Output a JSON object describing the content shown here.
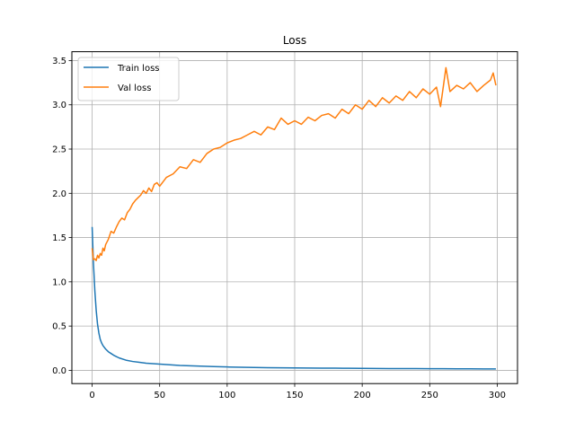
{
  "chart_data": {
    "type": "line",
    "title": "Loss",
    "xlabel": "",
    "ylabel": "",
    "xlim": [
      -15,
      315
    ],
    "ylim": [
      -0.15,
      3.6
    ],
    "xticks": [
      0,
      50,
      100,
      150,
      200,
      250,
      300
    ],
    "yticks": [
      0.0,
      0.5,
      1.0,
      1.5,
      2.0,
      2.5,
      3.0,
      3.5
    ],
    "xtick_labels": [
      "0",
      "50",
      "100",
      "150",
      "200",
      "250",
      "300"
    ],
    "ytick_labels": [
      "0.0",
      "0.5",
      "1.0",
      "1.5",
      "2.0",
      "2.5",
      "3.0",
      "3.5"
    ],
    "grid": true,
    "legend_position": "top-left",
    "series": [
      {
        "name": "Train loss",
        "color": "#1f77b4",
        "x": [
          0,
          1,
          2,
          3,
          4,
          5,
          6,
          7,
          8,
          9,
          10,
          12,
          14,
          16,
          18,
          20,
          25,
          30,
          35,
          40,
          45,
          50,
          55,
          60,
          65,
          70,
          75,
          80,
          90,
          100,
          110,
          120,
          130,
          140,
          150,
          160,
          170,
          180,
          190,
          200,
          210,
          220,
          230,
          240,
          250,
          260,
          270,
          280,
          290,
          299
        ],
        "values": [
          1.62,
          1.2,
          0.9,
          0.68,
          0.52,
          0.42,
          0.35,
          0.31,
          0.28,
          0.26,
          0.24,
          0.21,
          0.19,
          0.17,
          0.155,
          0.14,
          0.115,
          0.1,
          0.09,
          0.08,
          0.075,
          0.07,
          0.065,
          0.06,
          0.055,
          0.052,
          0.05,
          0.047,
          0.042,
          0.038,
          0.035,
          0.032,
          0.03,
          0.028,
          0.027,
          0.026,
          0.025,
          0.024,
          0.023,
          0.022,
          0.021,
          0.02,
          0.02,
          0.019,
          0.018,
          0.018,
          0.017,
          0.017,
          0.016,
          0.016
        ]
      },
      {
        "name": "Val loss",
        "color": "#ff7f0e",
        "x": [
          0,
          1,
          2,
          3,
          4,
          5,
          6,
          7,
          8,
          9,
          10,
          12,
          14,
          16,
          18,
          20,
          22,
          24,
          26,
          28,
          30,
          32,
          34,
          36,
          38,
          40,
          42,
          44,
          46,
          48,
          50,
          55,
          60,
          65,
          70,
          75,
          80,
          85,
          90,
          95,
          100,
          105,
          110,
          115,
          120,
          125,
          130,
          135,
          140,
          145,
          150,
          155,
          160,
          165,
          170,
          175,
          180,
          185,
          190,
          195,
          200,
          205,
          210,
          215,
          220,
          225,
          230,
          235,
          240,
          245,
          250,
          255,
          258,
          262,
          265,
          270,
          275,
          280,
          285,
          290,
          295,
          297,
          299
        ],
        "values": [
          1.38,
          1.25,
          1.26,
          1.24,
          1.3,
          1.27,
          1.32,
          1.3,
          1.38,
          1.35,
          1.42,
          1.48,
          1.57,
          1.55,
          1.62,
          1.68,
          1.72,
          1.7,
          1.78,
          1.82,
          1.88,
          1.92,
          1.95,
          1.98,
          2.03,
          2.0,
          2.06,
          2.02,
          2.1,
          2.12,
          2.08,
          2.18,
          2.22,
          2.3,
          2.28,
          2.38,
          2.35,
          2.45,
          2.5,
          2.52,
          2.57,
          2.6,
          2.62,
          2.66,
          2.7,
          2.66,
          2.75,
          2.72,
          2.85,
          2.78,
          2.82,
          2.78,
          2.86,
          2.82,
          2.88,
          2.9,
          2.85,
          2.95,
          2.9,
          3.0,
          2.95,
          3.05,
          2.98,
          3.08,
          3.02,
          3.1,
          3.05,
          3.15,
          3.08,
          3.18,
          3.12,
          3.2,
          2.98,
          3.42,
          3.15,
          3.22,
          3.18,
          3.25,
          3.15,
          3.22,
          3.28,
          3.36,
          3.22
        ]
      }
    ]
  }
}
